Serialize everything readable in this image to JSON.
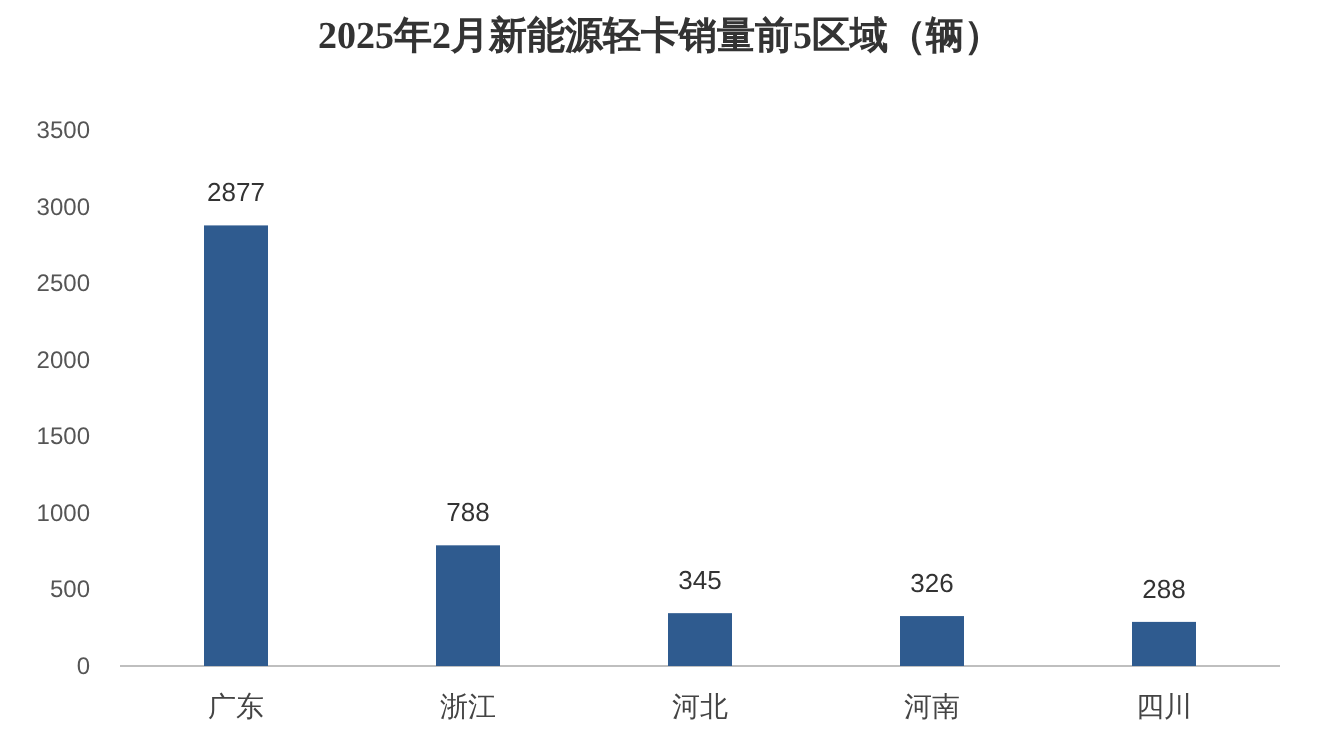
{
  "chart_data": {
    "type": "bar",
    "title": "2025年2月新能源轻卡销量前5区域（辆）",
    "categories": [
      "广东",
      "浙江",
      "河北",
      "河南",
      "四川"
    ],
    "values": [
      2877,
      788,
      345,
      326,
      288
    ],
    "color": "#2f5b8f",
    "ylim": [
      0,
      3500
    ],
    "yticks": [
      0,
      500,
      1000,
      1500,
      2000,
      2500,
      3000,
      3500
    ],
    "grid": false,
    "data_labels": true
  }
}
